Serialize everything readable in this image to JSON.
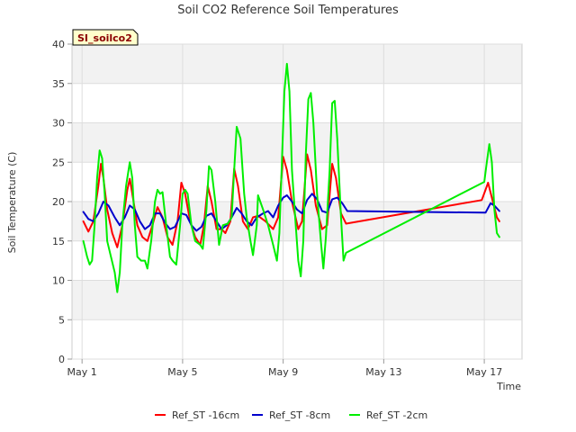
{
  "chart_data": {
    "type": "line",
    "title": "Soil CO2 Reference Soil Temperatures",
    "xlabel": "Time",
    "ylabel": "Soil Temperature (C)",
    "site_badge": "SI_soilco2",
    "ylim": [
      0,
      40
    ],
    "yticks": [
      0,
      5,
      10,
      15,
      20,
      25,
      30,
      35,
      40
    ],
    "xlim": [
      0.6,
      18.5
    ],
    "xticks": [
      {
        "value": 1,
        "label": "May 1"
      },
      {
        "value": 5,
        "label": "May 5"
      },
      {
        "value": 9,
        "label": "May 9"
      },
      {
        "value": 13,
        "label": "May 13"
      },
      {
        "value": 17,
        "label": "May 17"
      }
    ],
    "grid": true,
    "legend_position": "bottom",
    "series": [
      {
        "name": "Ref_ST -16cm",
        "color": "#ff0000",
        "points": [
          [
            1.05,
            17.5
          ],
          [
            1.25,
            16.2
          ],
          [
            1.45,
            17.5
          ],
          [
            1.65,
            22.0
          ],
          [
            1.75,
            24.8
          ],
          [
            1.85,
            23.0
          ],
          [
            2.0,
            19.0
          ],
          [
            2.2,
            16.0
          ],
          [
            2.4,
            14.2
          ],
          [
            2.6,
            17.0
          ],
          [
            2.8,
            21.5
          ],
          [
            2.9,
            22.9
          ],
          [
            3.0,
            21.0
          ],
          [
            3.2,
            17.0
          ],
          [
            3.4,
            15.5
          ],
          [
            3.6,
            15.0
          ],
          [
            3.8,
            17.0
          ],
          [
            4.0,
            19.3
          ],
          [
            4.2,
            18.0
          ],
          [
            4.4,
            15.5
          ],
          [
            4.6,
            14.5
          ],
          [
            4.8,
            17.5
          ],
          [
            4.95,
            22.4
          ],
          [
            5.1,
            21.0
          ],
          [
            5.3,
            17.5
          ],
          [
            5.5,
            15.5
          ],
          [
            5.7,
            14.5
          ],
          [
            5.85,
            17.0
          ],
          [
            6.0,
            22.0
          ],
          [
            6.15,
            20.0
          ],
          [
            6.35,
            16.5
          ],
          [
            6.55,
            16.5
          ],
          [
            6.7,
            16.0
          ],
          [
            6.9,
            17.5
          ],
          [
            7.05,
            24.2
          ],
          [
            7.2,
            22.0
          ],
          [
            7.4,
            17.5
          ],
          [
            7.6,
            16.5
          ],
          [
            7.8,
            18.0
          ],
          [
            8.0,
            18.2
          ],
          [
            8.3,
            17.5
          ],
          [
            8.6,
            16.5
          ],
          [
            8.8,
            18.0
          ],
          [
            9.0,
            25.7
          ],
          [
            9.15,
            24.0
          ],
          [
            9.35,
            20.0
          ],
          [
            9.6,
            16.5
          ],
          [
            9.75,
            17.5
          ],
          [
            9.95,
            26.0
          ],
          [
            10.1,
            24.0
          ],
          [
            10.3,
            19.5
          ],
          [
            10.55,
            16.5
          ],
          [
            10.75,
            17.0
          ],
          [
            10.95,
            24.8
          ],
          [
            11.1,
            23.0
          ],
          [
            11.3,
            18.5
          ],
          [
            11.5,
            17.2
          ],
          [
            16.9,
            20.2
          ],
          [
            17.05,
            21.5
          ],
          [
            17.15,
            22.4
          ],
          [
            17.3,
            20.5
          ],
          [
            17.5,
            18.0
          ],
          [
            17.6,
            17.5
          ]
        ]
      },
      {
        "name": "Ref_ST -8cm",
        "color": "#0000cc",
        "points": [
          [
            1.05,
            18.7
          ],
          [
            1.25,
            17.8
          ],
          [
            1.45,
            17.5
          ],
          [
            1.65,
            18.5
          ],
          [
            1.85,
            20.0
          ],
          [
            2.05,
            19.5
          ],
          [
            2.3,
            18.0
          ],
          [
            2.5,
            17.0
          ],
          [
            2.7,
            18.0
          ],
          [
            2.9,
            19.5
          ],
          [
            3.1,
            19.0
          ],
          [
            3.3,
            17.5
          ],
          [
            3.5,
            16.5
          ],
          [
            3.7,
            17.0
          ],
          [
            3.9,
            18.5
          ],
          [
            4.1,
            18.5
          ],
          [
            4.3,
            17.3
          ],
          [
            4.5,
            16.5
          ],
          [
            4.7,
            16.8
          ],
          [
            4.95,
            18.5
          ],
          [
            5.15,
            18.3
          ],
          [
            5.35,
            17.0
          ],
          [
            5.55,
            16.3
          ],
          [
            5.75,
            16.8
          ],
          [
            5.95,
            18.2
          ],
          [
            6.15,
            18.5
          ],
          [
            6.35,
            17.5
          ],
          [
            6.55,
            16.5
          ],
          [
            6.75,
            17.0
          ],
          [
            6.95,
            18.0
          ],
          [
            7.15,
            19.2
          ],
          [
            7.35,
            18.5
          ],
          [
            7.55,
            17.5
          ],
          [
            7.75,
            17.0
          ],
          [
            7.95,
            18.0
          ],
          [
            8.2,
            18.5
          ],
          [
            8.4,
            18.8
          ],
          [
            8.6,
            18.0
          ],
          [
            8.8,
            19.5
          ],
          [
            9.0,
            20.5
          ],
          [
            9.15,
            20.8
          ],
          [
            9.35,
            20.0
          ],
          [
            9.55,
            19.0
          ],
          [
            9.75,
            18.5
          ],
          [
            9.95,
            20.2
          ],
          [
            10.15,
            21.0
          ],
          [
            10.35,
            20.3
          ],
          [
            10.55,
            18.8
          ],
          [
            10.75,
            18.6
          ],
          [
            10.95,
            20.3
          ],
          [
            11.15,
            20.5
          ],
          [
            11.35,
            19.8
          ],
          [
            11.55,
            18.8
          ],
          [
            17.05,
            18.6
          ],
          [
            17.25,
            19.8
          ],
          [
            17.4,
            19.5
          ],
          [
            17.6,
            18.8
          ]
        ]
      },
      {
        "name": "Ref_ST -2cm",
        "color": "#00ee00",
        "points": [
          [
            1.05,
            15.0
          ],
          [
            1.2,
            13.0
          ],
          [
            1.3,
            12.0
          ],
          [
            1.4,
            12.5
          ],
          [
            1.5,
            17.0
          ],
          [
            1.6,
            23.0
          ],
          [
            1.7,
            26.5
          ],
          [
            1.8,
            25.5
          ],
          [
            1.9,
            21.0
          ],
          [
            2.0,
            15.0
          ],
          [
            2.15,
            13.0
          ],
          [
            2.3,
            11.0
          ],
          [
            2.4,
            8.5
          ],
          [
            2.5,
            11.0
          ],
          [
            2.6,
            17.0
          ],
          [
            2.75,
            22.0
          ],
          [
            2.9,
            25.0
          ],
          [
            3.0,
            23.0
          ],
          [
            3.1,
            17.0
          ],
          [
            3.2,
            13.0
          ],
          [
            3.35,
            12.5
          ],
          [
            3.5,
            12.5
          ],
          [
            3.6,
            11.5
          ],
          [
            3.75,
            15.0
          ],
          [
            3.9,
            20.0
          ],
          [
            4.0,
            21.5
          ],
          [
            4.1,
            21.0
          ],
          [
            4.2,
            21.2
          ],
          [
            4.35,
            17.0
          ],
          [
            4.5,
            13.0
          ],
          [
            4.6,
            12.5
          ],
          [
            4.75,
            12.0
          ],
          [
            4.9,
            17.0
          ],
          [
            5.0,
            21.0
          ],
          [
            5.1,
            21.5
          ],
          [
            5.2,
            21.0
          ],
          [
            5.35,
            17.0
          ],
          [
            5.5,
            15.0
          ],
          [
            5.7,
            14.5
          ],
          [
            5.8,
            14.0
          ],
          [
            5.95,
            19.0
          ],
          [
            6.05,
            24.5
          ],
          [
            6.15,
            24.0
          ],
          [
            6.3,
            20.0
          ],
          [
            6.45,
            14.5
          ],
          [
            6.6,
            17.0
          ],
          [
            6.8,
            17.2
          ],
          [
            6.95,
            18.0
          ],
          [
            7.05,
            24.0
          ],
          [
            7.15,
            29.5
          ],
          [
            7.3,
            28.0
          ],
          [
            7.45,
            21.0
          ],
          [
            7.55,
            18.0
          ],
          [
            7.7,
            15.0
          ],
          [
            7.8,
            13.2
          ],
          [
            7.95,
            17.0
          ],
          [
            8.0,
            20.8
          ],
          [
            8.2,
            19.0
          ],
          [
            8.4,
            17.0
          ],
          [
            8.6,
            14.5
          ],
          [
            8.75,
            12.5
          ],
          [
            8.85,
            16.0
          ],
          [
            8.95,
            25.0
          ],
          [
            9.05,
            34.0
          ],
          [
            9.15,
            37.5
          ],
          [
            9.25,
            34.0
          ],
          [
            9.35,
            24.0
          ],
          [
            9.5,
            17.0
          ],
          [
            9.6,
            12.5
          ],
          [
            9.7,
            10.5
          ],
          [
            9.8,
            15.0
          ],
          [
            9.9,
            26.0
          ],
          [
            10.0,
            33.0
          ],
          [
            10.1,
            33.8
          ],
          [
            10.2,
            30.0
          ],
          [
            10.35,
            21.0
          ],
          [
            10.5,
            15.0
          ],
          [
            10.6,
            11.5
          ],
          [
            10.7,
            15.5
          ],
          [
            10.85,
            24.0
          ],
          [
            10.95,
            32.5
          ],
          [
            11.05,
            32.8
          ],
          [
            11.15,
            28.0
          ],
          [
            11.3,
            18.0
          ],
          [
            11.4,
            12.5
          ],
          [
            11.5,
            13.5
          ],
          [
            17.0,
            22.5
          ],
          [
            17.1,
            25.0
          ],
          [
            17.2,
            27.3
          ],
          [
            17.3,
            25.0
          ],
          [
            17.4,
            19.0
          ],
          [
            17.5,
            16.0
          ],
          [
            17.6,
            15.5
          ]
        ]
      }
    ]
  }
}
